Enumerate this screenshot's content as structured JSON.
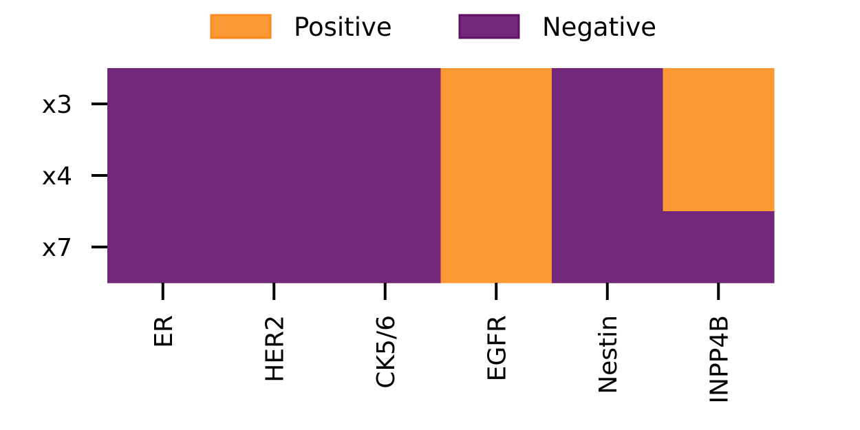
{
  "chart_data": {
    "type": "heatmap",
    "title": "",
    "xlabel": "",
    "ylabel": "",
    "x_categories": [
      "ER",
      "HER2",
      "CK5/6",
      "EGFR",
      "Nestin",
      "INPP4B"
    ],
    "y_categories": [
      "x3",
      "x4",
      "x7"
    ],
    "values": [
      [
        "Negative",
        "Negative",
        "Negative",
        "Positive",
        "Negative",
        "Positive"
      ],
      [
        "Negative",
        "Negative",
        "Negative",
        "Positive",
        "Negative",
        "Positive"
      ],
      [
        "Negative",
        "Negative",
        "Negative",
        "Positive",
        "Negative",
        "Negative"
      ]
    ],
    "legend": {
      "placement": "top-center",
      "entries": [
        {
          "label": "Positive",
          "color": "#FB9A35",
          "edge": "#F98A1E"
        },
        {
          "label": "Negative",
          "color": "#73277A",
          "edge": "#5E1166"
        }
      ]
    },
    "grid": false
  }
}
